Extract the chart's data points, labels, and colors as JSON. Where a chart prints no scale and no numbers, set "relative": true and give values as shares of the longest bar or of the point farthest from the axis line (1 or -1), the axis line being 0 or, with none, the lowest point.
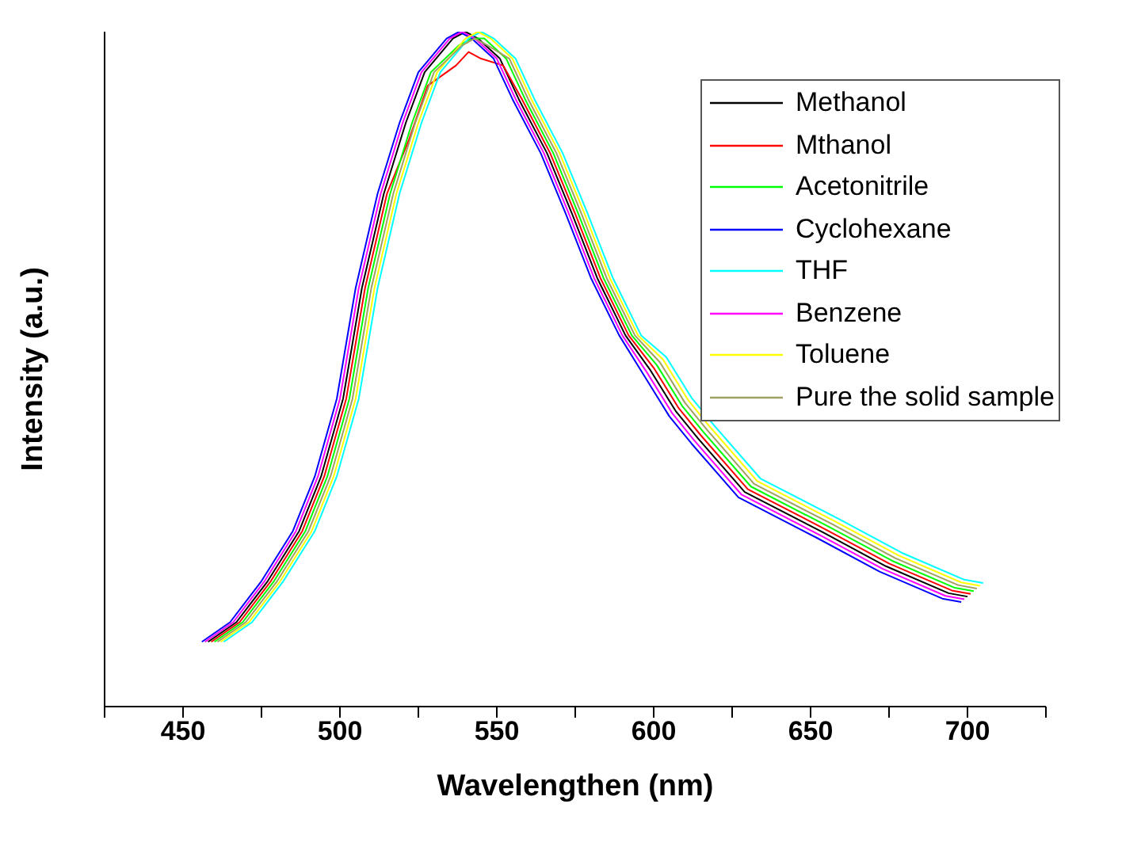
{
  "chart_data": {
    "type": "line",
    "relative": true,
    "xlabel": "Wavelengthen (nm)",
    "ylabel": "Intensity (a.u.)",
    "xlim": [
      425,
      725
    ],
    "xticks": [
      {
        "value": 425,
        "label": null
      },
      450,
      {
        "value": 475,
        "label": null
      },
      500,
      {
        "value": 525,
        "label": null
      },
      550,
      {
        "value": 575,
        "label": null
      },
      600,
      {
        "value": 625,
        "label": null
      },
      650,
      {
        "value": 675,
        "label": null
      },
      700,
      {
        "value": 725,
        "label": null
      }
    ],
    "legend": "top right",
    "grid": false,
    "series": [
      {
        "name": "Methanol",
        "color": "#000000",
        "x": [
          458,
          467,
          477,
          487,
          494,
          501,
          507,
          514,
          521,
          527,
          536,
          540,
          544,
          551,
          557,
          566,
          574,
          582,
          591,
          599,
          607,
          614,
          629,
          654,
          674,
          694,
          700
        ],
        "values": [
          0.096,
          0.125,
          0.186,
          0.26,
          0.341,
          0.456,
          0.62,
          0.76,
          0.865,
          0.94,
          0.99,
          1,
          0.99,
          0.96,
          0.9,
          0.82,
          0.73,
          0.635,
          0.55,
          0.498,
          0.438,
          0.398,
          0.318,
          0.258,
          0.208,
          0.168,
          0.163
        ]
      },
      {
        "name": "Mthanol",
        "color": "#ff0000",
        "x": [
          459,
          468,
          478,
          488,
          495,
          502,
          508,
          515,
          522,
          528,
          537,
          541,
          545,
          552,
          558,
          567,
          575,
          583,
          592,
          600,
          608,
          615,
          630,
          655,
          675,
          695,
          701
        ],
        "values": [
          0.096,
          0.125,
          0.186,
          0.26,
          0.341,
          0.456,
          0.62,
          0.76,
          0.84,
          0.92,
          0.95,
          0.97,
          0.96,
          0.95,
          0.9,
          0.82,
          0.73,
          0.635,
          0.55,
          0.502,
          0.442,
          0.402,
          0.322,
          0.262,
          0.212,
          0.172,
          0.167
        ]
      },
      {
        "name": "Acetonitrile",
        "color": "#00ff00",
        "x": [
          460,
          469,
          479,
          489,
          496,
          503,
          509,
          516,
          523,
          529,
          538,
          542,
          546,
          553,
          559,
          568,
          576,
          584,
          593,
          601,
          609,
          616,
          631,
          656,
          676,
          696,
          702
        ],
        "values": [
          0.096,
          0.125,
          0.186,
          0.26,
          0.341,
          0.456,
          0.62,
          0.76,
          0.865,
          0.94,
          0.98,
          0.99,
          0.99,
          0.96,
          0.9,
          0.82,
          0.73,
          0.635,
          0.55,
          0.506,
          0.446,
          0.406,
          0.326,
          0.266,
          0.216,
          0.176,
          0.171
        ]
      },
      {
        "name": "Cyclohexane",
        "color": "#0000ff",
        "x": [
          456,
          465,
          475,
          485,
          492,
          499,
          505,
          512,
          519,
          525,
          534,
          538,
          542,
          549,
          555,
          564,
          572,
          580,
          589,
          597,
          605,
          612,
          627,
          652,
          672,
          692,
          698
        ],
        "values": [
          0.096,
          0.125,
          0.186,
          0.26,
          0.341,
          0.456,
          0.62,
          0.76,
          0.865,
          0.94,
          0.99,
          1,
          0.99,
          0.96,
          0.9,
          0.82,
          0.73,
          0.635,
          0.55,
          0.49,
          0.43,
          0.39,
          0.31,
          0.25,
          0.2,
          0.16,
          0.155
        ]
      },
      {
        "name": "THF",
        "color": "#00ffff",
        "x": [
          463,
          472,
          482,
          492,
          499,
          506,
          512,
          519,
          526,
          532,
          541,
          545,
          549,
          556,
          562,
          571,
          579,
          587,
          596,
          604,
          612,
          619,
          634,
          659,
          679,
          699,
          705
        ],
        "values": [
          0.096,
          0.125,
          0.186,
          0.26,
          0.341,
          0.456,
          0.62,
          0.76,
          0.865,
          0.94,
          0.99,
          1,
          0.99,
          0.96,
          0.9,
          0.82,
          0.73,
          0.635,
          0.55,
          0.518,
          0.458,
          0.418,
          0.338,
          0.278,
          0.228,
          0.188,
          0.183
        ]
      },
      {
        "name": "Benzene",
        "color": "#ff00ff",
        "x": [
          457,
          466,
          476,
          486,
          493,
          500,
          506,
          513,
          520,
          526,
          535,
          539,
          543,
          550,
          556,
          565,
          573,
          581,
          590,
          598,
          606,
          613,
          628,
          653,
          673,
          693,
          699
        ],
        "values": [
          0.096,
          0.125,
          0.186,
          0.26,
          0.341,
          0.456,
          0.62,
          0.76,
          0.865,
          0.94,
          0.99,
          1,
          0.99,
          0.96,
          0.9,
          0.82,
          0.73,
          0.635,
          0.55,
          0.494,
          0.434,
          0.394,
          0.314,
          0.254,
          0.204,
          0.164,
          0.159
        ]
      },
      {
        "name": "Toluene",
        "color": "#ffff00",
        "x": [
          462,
          471,
          481,
          491,
          498,
          505,
          511,
          518,
          525,
          531,
          540,
          544,
          548,
          555,
          561,
          570,
          578,
          586,
          595,
          603,
          611,
          618,
          633,
          658,
          678,
          698,
          704
        ],
        "values": [
          0.096,
          0.125,
          0.186,
          0.26,
          0.341,
          0.456,
          0.62,
          0.76,
          0.865,
          0.94,
          0.99,
          1,
          0.99,
          0.96,
          0.9,
          0.82,
          0.73,
          0.635,
          0.55,
          0.514,
          0.454,
          0.414,
          0.334,
          0.274,
          0.224,
          0.184,
          0.179
        ]
      },
      {
        "name": "Pure the solid sample",
        "color": "#a0a060",
        "x": [
          461,
          470,
          480,
          490,
          497,
          504,
          510,
          517,
          524,
          530,
          539,
          543,
          547,
          554,
          560,
          569,
          577,
          585,
          594,
          602,
          610,
          617,
          632,
          657,
          677,
          697,
          703
        ],
        "values": [
          0.096,
          0.125,
          0.186,
          0.26,
          0.341,
          0.456,
          0.62,
          0.76,
          0.865,
          0.94,
          0.98,
          0.99,
          0.98,
          0.96,
          0.9,
          0.82,
          0.73,
          0.635,
          0.55,
          0.51,
          0.45,
          0.41,
          0.33,
          0.27,
          0.22,
          0.18,
          0.175
        ]
      }
    ]
  }
}
